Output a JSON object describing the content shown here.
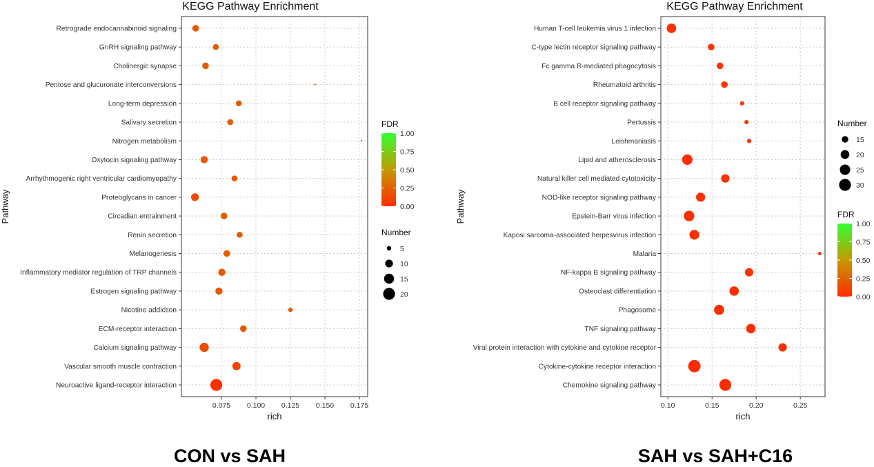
{
  "captions": [
    "CON vs SAH",
    "SAH vs SAH+C16"
  ],
  "chart_data": [
    {
      "type": "scatter",
      "title": "KEGG Pathway Enrichment",
      "xlabel": "rich",
      "ylabel": "Pathway",
      "xlim": [
        0.046,
        0.181
      ],
      "xticks": [
        0.075,
        0.1,
        0.125,
        0.15,
        0.175
      ],
      "xtick_labels": [
        "0.075",
        "0.100",
        "0.125",
        "0.150",
        "0.175"
      ],
      "grid": true,
      "categories": [
        "Retrograde endocannabinoid signaling",
        "GnRH signaling pathway",
        "Cholinergic synapse",
        "Pentose and glucuronate interconversions",
        "Long-term depression",
        "Salivary secretion",
        "Nitrogen metabolism",
        "Oxytocin signaling pathway",
        "Arrhythmogenic right ventricular cardiomyopathy",
        "Proteoglycans in cancer",
        "Circadian entrainment",
        "Renin secretion",
        "Melanogenesis",
        "Inflammatory mediator regulation of TRP channels",
        "Estrogen signaling pathway",
        "Nicotine addiction",
        "ECM-receptor interaction",
        "Calcium signaling pathway",
        "Vascular smooth muscle contraction",
        "Neuroactive ligand-receptor interaction"
      ],
      "rich": [
        0.0563,
        0.0709,
        0.0635,
        0.1429,
        0.0876,
        0.0814,
        0.1765,
        0.0625,
        0.0845,
        0.0558,
        0.0769,
        0.0882,
        0.0789,
        0.0753,
        0.0732,
        0.125,
        0.0909,
        0.0625,
        0.0859,
        0.0713
      ],
      "number": [
        8,
        7,
        8,
        2,
        7,
        7,
        1,
        9,
        7,
        10,
        8,
        7,
        8,
        9,
        9,
        5,
        8,
        13,
        11,
        20
      ],
      "fdr": [
        0.2,
        0.22,
        0.22,
        0.25,
        0.22,
        0.22,
        0.2,
        0.2,
        0.22,
        0.15,
        0.22,
        0.22,
        0.22,
        0.2,
        0.2,
        0.2,
        0.2,
        0.15,
        0.12,
        0.02
      ],
      "color_legend": {
        "title": "FDR",
        "labels": [
          "1.00",
          "0.75",
          "0.50",
          "0.25",
          "0.00"
        ],
        "colors": [
          "#33ff33",
          "#ff2a00"
        ]
      },
      "size_legend": {
        "title": "Number",
        "values": [
          5,
          10,
          15,
          20
        ],
        "labels": [
          "5",
          "10",
          "15",
          "20"
        ]
      },
      "legend_order": [
        "color",
        "size"
      ],
      "legend_position": "right"
    },
    {
      "type": "scatter",
      "title": "KEGG Pathway Enrichment",
      "xlabel": "rich",
      "ylabel": "Pathway",
      "xlim": [
        0.092,
        0.278
      ],
      "xticks": [
        0.1,
        0.15,
        0.2,
        0.25
      ],
      "xtick_labels": [
        "0.10",
        "0.15",
        "0.20",
        "0.25"
      ],
      "grid": true,
      "categories": [
        "Human T-cell leukemia virus 1 infection",
        "C-type lectin receptor signaling pathway",
        "Fc gamma R-mediated phagocytosis",
        "Rheumatoid arthritis",
        "B cell receptor signaling pathway",
        "Pertussis",
        "Leishmaniasis",
        "Lipid and atherosclerosis",
        "Natural killer cell mediated cytotoxicity",
        "NOD-like receptor signaling pathway",
        "Epstein-Barr virus infection",
        "Kaposi sarcoma-associated herpesvirus infection",
        "Malaria",
        "NF-kappa B signaling pathway",
        "Osteoclast differentiation",
        "Phagosome",
        "TNF signaling pathway",
        "Viral protein interaction with cytokine and cytokine receptor",
        "Cytokine-cytokine receptor interaction",
        "Chemokine signaling pathway"
      ],
      "rich": [
        0.104,
        0.149,
        0.159,
        0.164,
        0.184,
        0.189,
        0.192,
        0.122,
        0.165,
        0.137,
        0.124,
        0.13,
        0.272,
        0.192,
        0.175,
        0.158,
        0.194,
        0.23,
        0.13,
        0.165
      ],
      "number": [
        22,
        15,
        15,
        15,
        11,
        11,
        11,
        25,
        19,
        21,
        25,
        23,
        10,
        19,
        22,
        24,
        22,
        19,
        32,
        30
      ],
      "fdr": [
        0.02,
        0.04,
        0.04,
        0.04,
        0.05,
        0.05,
        0.05,
        0.02,
        0.03,
        0.03,
        0.02,
        0.02,
        0.05,
        0.03,
        0.02,
        0.02,
        0.02,
        0.03,
        0.01,
        0.01
      ],
      "color_legend": {
        "title": "FDR",
        "labels": [
          "1.00",
          "0.75",
          "0.50",
          "0.25",
          "0.00"
        ],
        "colors": [
          "#33ff33",
          "#ff2a00"
        ]
      },
      "size_legend": {
        "title": "Number",
        "values": [
          15,
          20,
          25,
          30
        ],
        "labels": [
          "15",
          "20",
          "25",
          "30"
        ]
      },
      "legend_order": [
        "size",
        "color"
      ],
      "legend_position": "right"
    }
  ]
}
